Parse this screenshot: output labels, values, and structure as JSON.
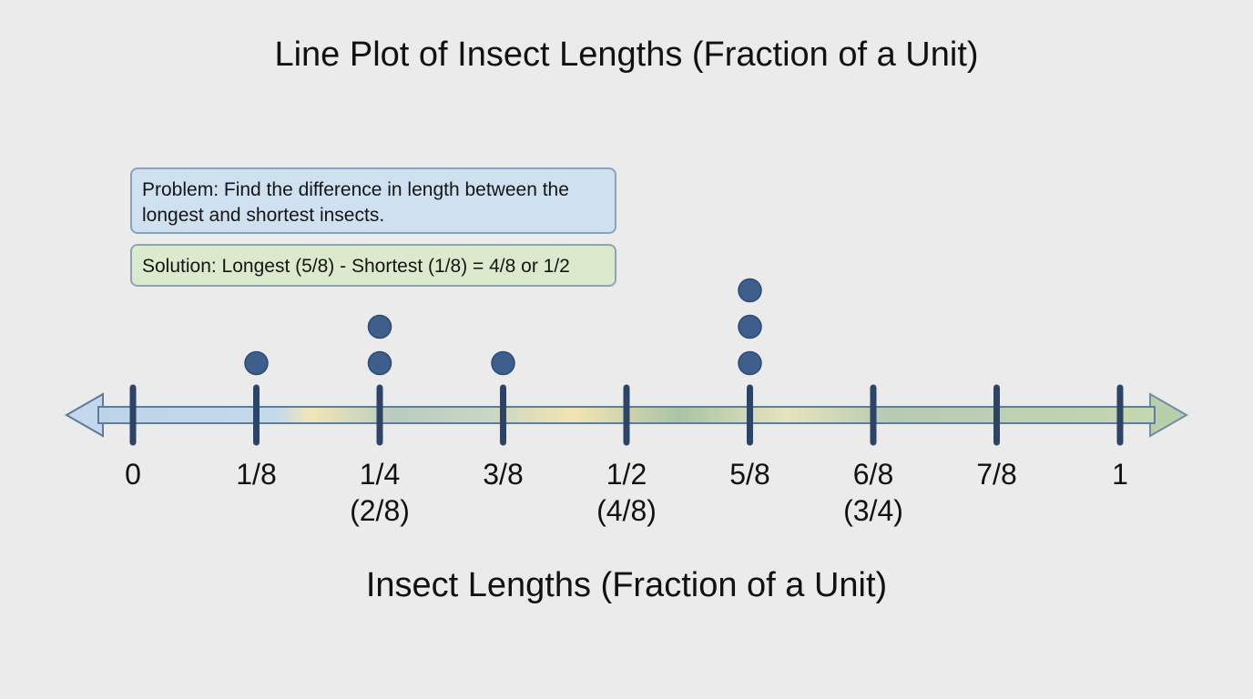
{
  "chart_data": {
    "type": "dot-plot",
    "title": "Line Plot of Insect Lengths (Fraction of a Unit)",
    "xlabel": "Insect Lengths (Fraction of a Unit)",
    "ylabel": "",
    "xlim": [
      0,
      1
    ],
    "ticks": [
      {
        "value": 0,
        "label": "0",
        "sublabel": ""
      },
      {
        "value": 0.125,
        "label": "1/8",
        "sublabel": ""
      },
      {
        "value": 0.25,
        "label": "1/4",
        "sublabel": "(2/8)"
      },
      {
        "value": 0.375,
        "label": "3/8",
        "sublabel": ""
      },
      {
        "value": 0.5,
        "label": "1/2",
        "sublabel": "(4/8)"
      },
      {
        "value": 0.625,
        "label": "5/8",
        "sublabel": ""
      },
      {
        "value": 0.75,
        "label": "6/8",
        "sublabel": "(3/4)"
      },
      {
        "value": 0.875,
        "label": "7/8",
        "sublabel": ""
      },
      {
        "value": 1,
        "label": "1",
        "sublabel": ""
      }
    ],
    "points": [
      {
        "x": "1/8",
        "count": 1
      },
      {
        "x": "1/4",
        "count": 2
      },
      {
        "x": "3/8",
        "count": 1
      },
      {
        "x": "5/8",
        "count": 3
      }
    ],
    "annotations": {
      "problem": "Problem: Find the difference in length between the longest and shortest insects.",
      "solution": "Solution: Longest (5/8) - Shortest (1/8) = 4/8 or 1/2"
    },
    "colors": {
      "dot": "#3e5f8c",
      "tick": "#2b4468",
      "axis_start": "#bcd4ea",
      "axis_mid": "#f3e4b2",
      "axis_end": "#c3d7b0"
    }
  }
}
